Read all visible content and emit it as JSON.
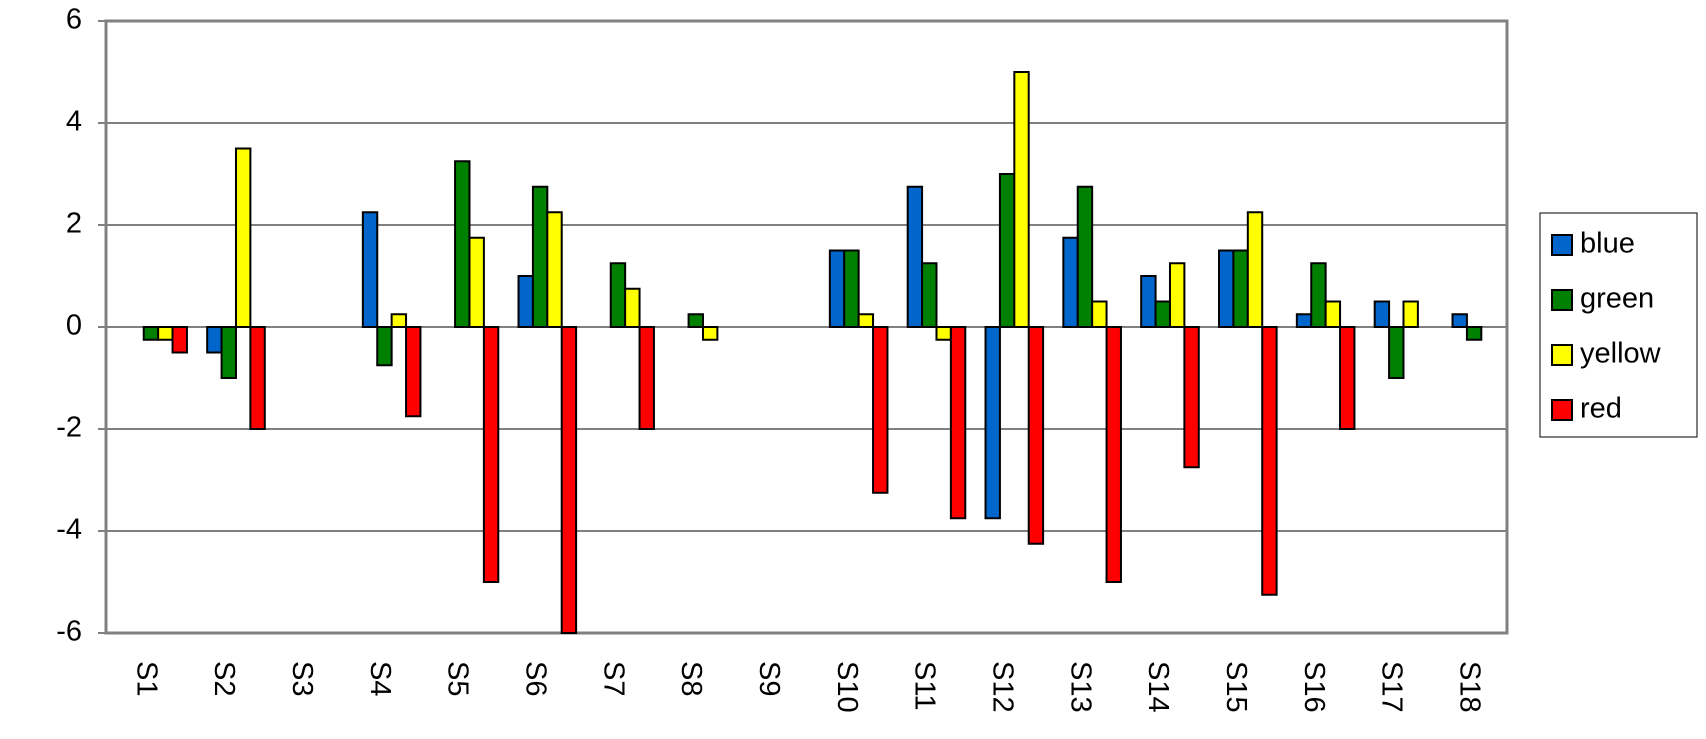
{
  "chart_data": {
    "type": "bar",
    "categories": [
      "S1",
      "S2",
      "S3",
      "S4",
      "S5",
      "S6",
      "S7",
      "S8",
      "S9",
      "S10",
      "S11",
      "S12",
      "S13",
      "S14",
      "S15",
      "S16",
      "S17",
      "S18"
    ],
    "series": [
      {
        "name": "blue",
        "color": "#0066cc",
        "values": [
          0,
          -0.5,
          0,
          2.25,
          0,
          1,
          0,
          0,
          0,
          1.5,
          2.75,
          -3.75,
          1.75,
          1,
          1.5,
          0.25,
          0.5,
          0.25
        ]
      },
      {
        "name": "green",
        "color": "#008000",
        "values": [
          -0.25,
          -1,
          0,
          -0.75,
          3.25,
          2.75,
          1.25,
          0.25,
          0,
          1.5,
          1.25,
          3,
          2.75,
          0.5,
          1.5,
          1.25,
          -1,
          -0.25
        ]
      },
      {
        "name": "yellow",
        "color": "#ffff00",
        "values": [
          -0.25,
          3.5,
          0,
          0.25,
          1.75,
          2.25,
          0.75,
          -0.25,
          0,
          0.25,
          -0.25,
          5,
          0.5,
          1.25,
          2.25,
          0.5,
          0.5,
          0
        ]
      },
      {
        "name": "red",
        "color": "#ff0000",
        "values": [
          -0.5,
          -2,
          0,
          -1.75,
          -5,
          -6,
          -2,
          0,
          0,
          -3.25,
          -3.75,
          -4.25,
          -5,
          -2.75,
          -5.25,
          -2,
          0,
          0
        ]
      }
    ],
    "ylim": [
      -6,
      6
    ],
    "yticks": [
      -6,
      -4,
      -2,
      0,
      2,
      4,
      6
    ],
    "grid": true,
    "legend": "right"
  }
}
